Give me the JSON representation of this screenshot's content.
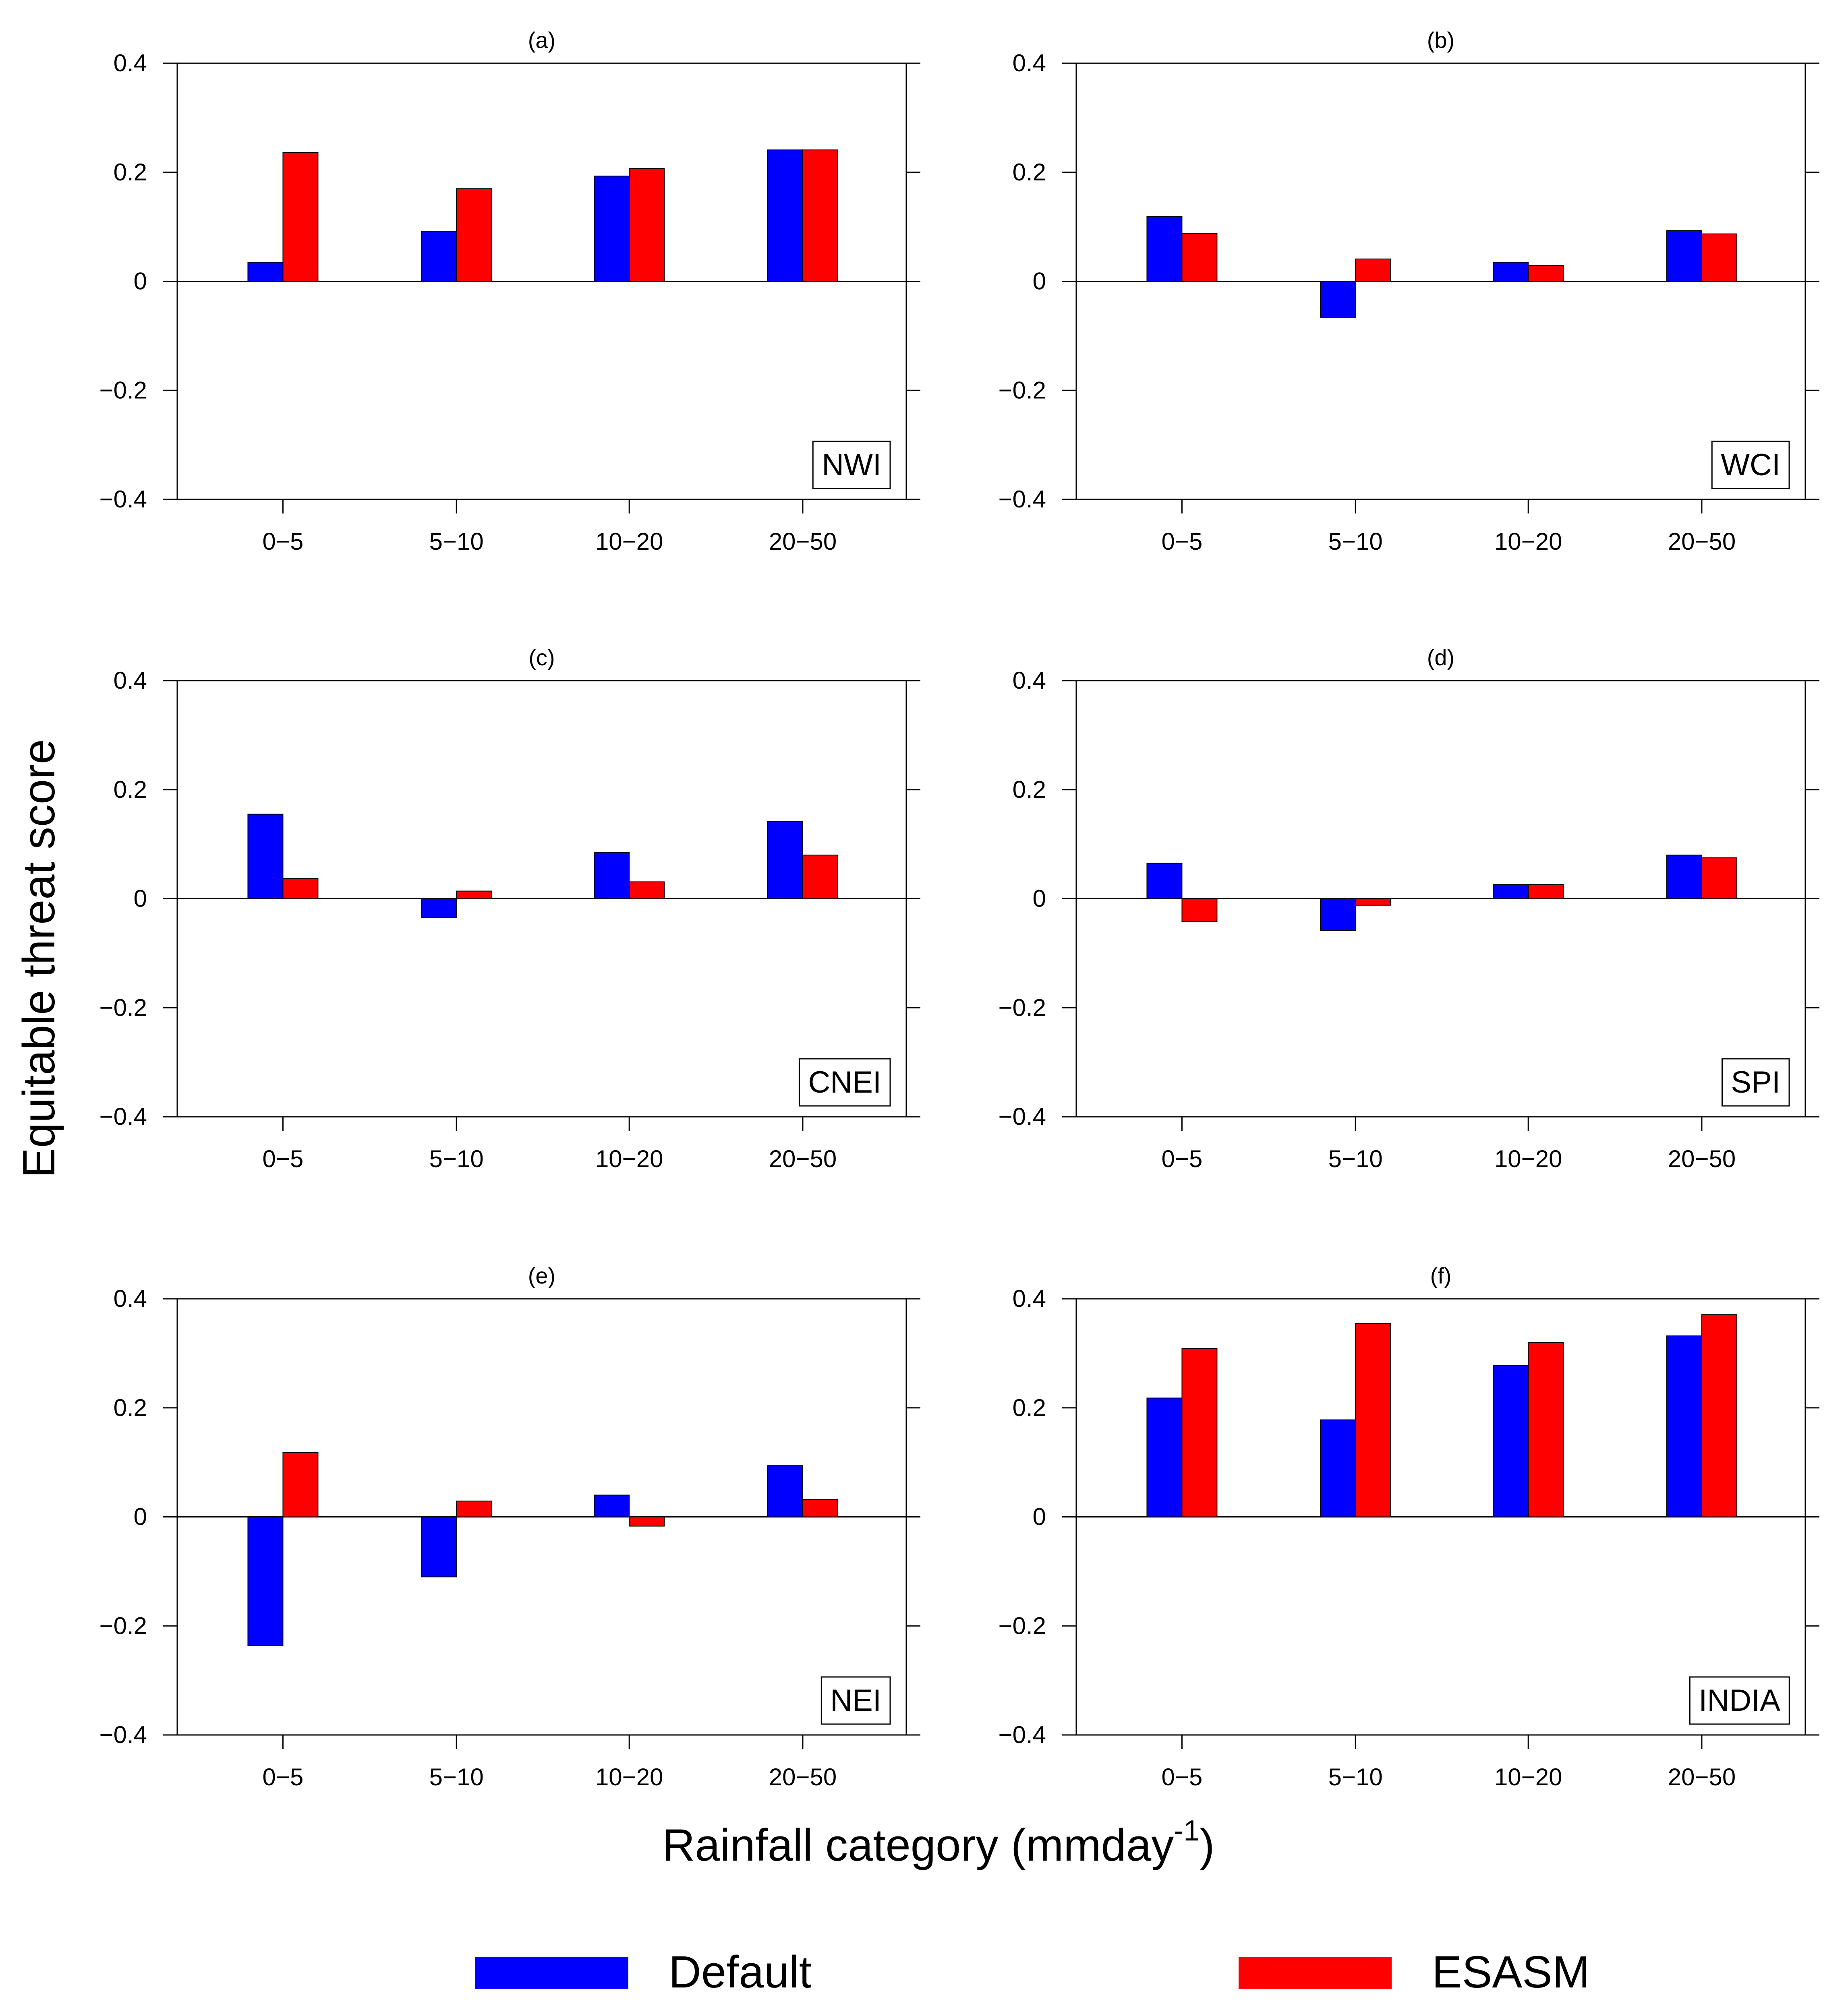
{
  "figure": {
    "ylabel": "Equitable threat score",
    "xlabel_main": "Rainfall category (mmday",
    "xlabel_sup": "-1",
    "xlabel_close": ")"
  },
  "legend": {
    "placement": "bottom",
    "entries": [
      {
        "name": "Default",
        "color": "#0000ff"
      },
      {
        "name": "ESASM",
        "color": "#ff0000"
      }
    ]
  },
  "chart_data": [
    {
      "type": "bar",
      "title": "(a)",
      "region": "NWI",
      "categories": [
        "0−5",
        "5−10",
        "10−20",
        "20−50"
      ],
      "ylim": [
        -0.4,
        0.4
      ],
      "yticks": [
        -0.4,
        -0.2,
        0,
        0.2,
        0.4
      ],
      "ytick_labels": [
        "−0.4",
        "−0.2",
        "0",
        "0.2",
        "0.4"
      ],
      "series": [
        {
          "name": "Default",
          "color": "#0000ff",
          "values": [
            0.035,
            0.092,
            0.193,
            0.241
          ]
        },
        {
          "name": "ESASM",
          "color": "#ff0000",
          "values": [
            0.236,
            0.17,
            0.207,
            0.241
          ]
        }
      ]
    },
    {
      "type": "bar",
      "title": "(b)",
      "region": "WCI",
      "categories": [
        "0−5",
        "5−10",
        "10−20",
        "20−50"
      ],
      "ylim": [
        -0.4,
        0.4
      ],
      "yticks": [
        -0.4,
        -0.2,
        0,
        0.2,
        0.4
      ],
      "ytick_labels": [
        "−0.4",
        "−0.2",
        "0",
        "0.2",
        "0.4"
      ],
      "series": [
        {
          "name": "Default",
          "color": "#0000ff",
          "values": [
            0.119,
            -0.066,
            0.035,
            0.093
          ]
        },
        {
          "name": "ESASM",
          "color": "#ff0000",
          "values": [
            0.088,
            0.041,
            0.029,
            0.087
          ]
        }
      ]
    },
    {
      "type": "bar",
      "title": "(c)",
      "region": "CNEI",
      "categories": [
        "0−5",
        "5−10",
        "10−20",
        "20−50"
      ],
      "ylim": [
        -0.4,
        0.4
      ],
      "yticks": [
        -0.4,
        -0.2,
        0,
        0.2,
        0.4
      ],
      "ytick_labels": [
        "−0.4",
        "−0.2",
        "0",
        "0.2",
        "0.4"
      ],
      "series": [
        {
          "name": "Default",
          "color": "#0000ff",
          "values": [
            0.155,
            -0.035,
            0.085,
            0.142
          ]
        },
        {
          "name": "ESASM",
          "color": "#ff0000",
          "values": [
            0.037,
            0.014,
            0.031,
            0.08
          ]
        }
      ]
    },
    {
      "type": "bar",
      "title": "(d)",
      "region": "SPI",
      "categories": [
        "0−5",
        "5−10",
        "10−20",
        "20−50"
      ],
      "ylim": [
        -0.4,
        0.4
      ],
      "yticks": [
        -0.4,
        -0.2,
        0,
        0.2,
        0.4
      ],
      "ytick_labels": [
        "−0.4",
        "−0.2",
        "0",
        "0.2",
        "0.4"
      ],
      "series": [
        {
          "name": "Default",
          "color": "#0000ff",
          "values": [
            0.065,
            -0.058,
            0.026,
            0.08
          ]
        },
        {
          "name": "ESASM",
          "color": "#ff0000",
          "values": [
            -0.042,
            -0.012,
            0.026,
            0.075
          ]
        }
      ]
    },
    {
      "type": "bar",
      "title": "(e)",
      "region": "NEI",
      "categories": [
        "0−5",
        "5−10",
        "10−20",
        "20−50"
      ],
      "ylim": [
        -0.4,
        0.4
      ],
      "yticks": [
        -0.4,
        -0.2,
        0,
        0.2,
        0.4
      ],
      "ytick_labels": [
        "−0.4",
        "−0.2",
        "0",
        "0.2",
        "0.4"
      ],
      "series": [
        {
          "name": "Default",
          "color": "#0000ff",
          "values": [
            -0.236,
            -0.11,
            0.04,
            0.094
          ]
        },
        {
          "name": "ESASM",
          "color": "#ff0000",
          "values": [
            0.118,
            0.029,
            -0.017,
            0.032
          ]
        }
      ]
    },
    {
      "type": "bar",
      "title": "(f)",
      "region": "INDIA",
      "categories": [
        "0−5",
        "5−10",
        "10−20",
        "20−50"
      ],
      "ylim": [
        -0.4,
        0.4
      ],
      "yticks": [
        -0.4,
        -0.2,
        0,
        0.2,
        0.4
      ],
      "ytick_labels": [
        "−0.4",
        "−0.2",
        "0",
        "0.2",
        "0.4"
      ],
      "series": [
        {
          "name": "Default",
          "color": "#0000ff",
          "values": [
            0.218,
            0.178,
            0.278,
            0.332
          ]
        },
        {
          "name": "ESASM",
          "color": "#ff0000",
          "values": [
            0.309,
            0.355,
            0.32,
            0.371
          ]
        }
      ]
    }
  ]
}
